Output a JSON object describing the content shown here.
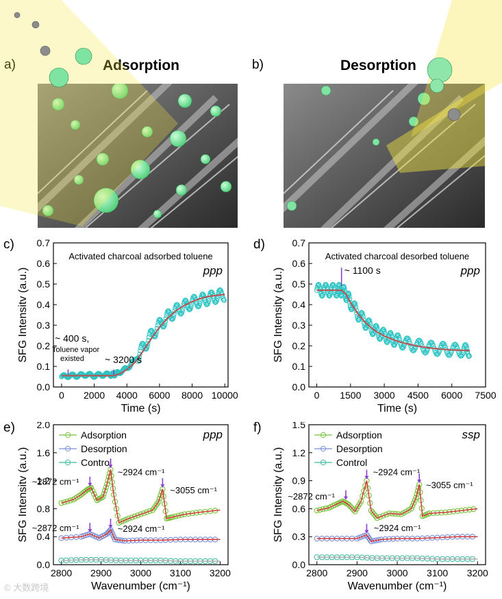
{
  "figure": {
    "panel_a": {
      "label": "a)",
      "title": "Adsorption"
    },
    "panel_b": {
      "label": "b)",
      "title": "Desorption"
    },
    "watermark": "© 大数跨境"
  },
  "colors": {
    "marker": "#2ec4c4",
    "fit": "#b25a5a",
    "green": "#78c23c",
    "blue": "#7a8fd6",
    "teal": "#3fb8a0",
    "highlight": "#f5e640"
  },
  "chart_data": [
    {
      "id": "c",
      "panel_label": "c)",
      "type": "scatter",
      "title": "Activated charcoal adsorbed toluene",
      "pol": "ppp",
      "xlabel": "Time (s)",
      "ylabel": "SFG Intensitv (a.u.)",
      "xlim": [
        -500,
        10200
      ],
      "ylim": [
        0,
        0.7
      ],
      "xticks": [
        0,
        2000,
        4000,
        6000,
        8000,
        10000
      ],
      "yticks": [
        0.0,
        0.1,
        0.2,
        0.3,
        0.4,
        0.5,
        0.6,
        0.7
      ],
      "series": [
        {
          "kind": "points",
          "x": [
            0,
            500,
            1000,
            1500,
            2000,
            2500,
            3000,
            3200,
            3500,
            4000,
            4500,
            5000,
            5500,
            6000,
            6500,
            7000,
            7500,
            8000,
            8500,
            9000,
            9500,
            10000
          ],
          "y": [
            0.05,
            0.055,
            0.055,
            0.06,
            0.055,
            0.06,
            0.06,
            0.06,
            0.07,
            0.09,
            0.13,
            0.19,
            0.25,
            0.3,
            0.34,
            0.37,
            0.39,
            0.41,
            0.42,
            0.43,
            0.44,
            0.45
          ]
        },
        {
          "kind": "fit",
          "x": [
            0,
            3200,
            3600,
            4000,
            4500,
            5000,
            5500,
            6000,
            6500,
            7000,
            7500,
            8000,
            8500,
            9000,
            9500,
            10000
          ],
          "y": [
            0.055,
            0.055,
            0.065,
            0.085,
            0.12,
            0.175,
            0.235,
            0.29,
            0.335,
            0.37,
            0.395,
            0.415,
            0.43,
            0.44,
            0.445,
            0.45
          ]
        }
      ],
      "annotations": [
        {
          "text": "~ 400 s,",
          "x": 400,
          "y": 0.055
        },
        {
          "text": "Toluene vapor",
          "x": 400,
          "y": 0.055
        },
        {
          "text": "existed",
          "x": 400,
          "y": 0.055
        },
        {
          "text": "~ 3200 s",
          "x": 3200,
          "y": 0.06
        }
      ]
    },
    {
      "id": "d",
      "panel_label": "d)",
      "type": "scatter",
      "title": "Activated charcoal desorbed toluene",
      "pol": "ppp",
      "xlabel": "Time (s)",
      "ylabel": "SFG Intensity (a.u.)",
      "xlim": [
        -350,
        7500
      ],
      "ylim": [
        0,
        0.7
      ],
      "xticks": [
        0,
        1500,
        3000,
        4500,
        6000,
        7500
      ],
      "yticks": [
        0.0,
        0.1,
        0.2,
        0.3,
        0.4,
        0.5,
        0.6,
        0.7
      ],
      "series": [
        {
          "kind": "points",
          "x": [
            0,
            300,
            600,
            900,
            1100,
            1300,
            1500,
            1800,
            2100,
            2400,
            2700,
            3000,
            3300,
            3600,
            4000,
            4500,
            5000,
            5500,
            6000,
            6500,
            6800
          ],
          "y": [
            0.47,
            0.47,
            0.47,
            0.47,
            0.47,
            0.45,
            0.41,
            0.36,
            0.32,
            0.29,
            0.265,
            0.25,
            0.235,
            0.225,
            0.21,
            0.2,
            0.19,
            0.185,
            0.18,
            0.178,
            0.177
          ]
        },
        {
          "kind": "fit",
          "x": [
            0,
            1100,
            1300,
            1500,
            1800,
            2100,
            2400,
            2700,
            3000,
            3300,
            3600,
            4000,
            4500,
            5000,
            5500,
            6000,
            6500,
            6800
          ],
          "y": [
            0.47,
            0.47,
            0.45,
            0.41,
            0.36,
            0.32,
            0.29,
            0.265,
            0.248,
            0.234,
            0.222,
            0.21,
            0.198,
            0.19,
            0.184,
            0.18,
            0.178,
            0.177
          ]
        }
      ],
      "annotations": [
        {
          "text": "~ 1100 s",
          "x": 1100,
          "y": 0.5
        }
      ]
    },
    {
      "id": "e",
      "panel_label": "e)",
      "type": "line",
      "pol": "ppp",
      "xlabel": "Wavenumber (cm⁻¹)",
      "ylabel": "SFG Intensitv (a.u.)",
      "xlim": [
        2780,
        3220
      ],
      "ylim": [
        0,
        2.0
      ],
      "xticks": [
        2800,
        2900,
        3000,
        3100,
        3200
      ],
      "yticks": [
        0.0,
        0.4,
        0.8,
        1.2,
        1.6,
        2.0
      ],
      "series": [
        {
          "name": "Adsorption",
          "x": [
            2800,
            2830,
            2850,
            2865,
            2875,
            2890,
            2905,
            2915,
            2924,
            2932,
            2945,
            2970,
            3000,
            3030,
            3045,
            3055,
            3065,
            3080,
            3110,
            3150,
            3200
          ],
          "y": [
            0.88,
            0.93,
            1.0,
            1.07,
            1.1,
            0.92,
            0.97,
            1.15,
            1.36,
            1.0,
            0.6,
            0.66,
            0.72,
            0.78,
            0.9,
            1.08,
            0.66,
            0.68,
            0.72,
            0.75,
            0.78
          ]
        },
        {
          "name": "Desorption",
          "x": [
            2800,
            2850,
            2872,
            2895,
            2915,
            2924,
            2935,
            2960,
            3000,
            3050,
            3100,
            3150,
            3200
          ],
          "y": [
            0.38,
            0.4,
            0.44,
            0.38,
            0.44,
            0.5,
            0.36,
            0.34,
            0.35,
            0.35,
            0.36,
            0.36,
            0.36
          ]
        },
        {
          "name": "Control",
          "x": [
            2800,
            2850,
            2900,
            2950,
            3000,
            3050,
            3100,
            3150,
            3200
          ],
          "y": [
            0.06,
            0.07,
            0.07,
            0.06,
            0.06,
            0.06,
            0.05,
            0.05,
            0.05
          ]
        }
      ],
      "annotations": [
        {
          "text": "~2872 cm⁻¹",
          "x": 2872,
          "y": 1.1
        },
        {
          "text": "~2924 cm⁻¹",
          "x": 2924,
          "y": 1.36
        },
        {
          "text": "~3055 cm⁻¹",
          "x": 3055,
          "y": 1.08
        },
        {
          "text": "~2872 cm⁻¹",
          "x": 2872,
          "y": 0.44
        },
        {
          "text": "~2924 cm⁻¹",
          "x": 2924,
          "y": 0.5
        }
      ]
    },
    {
      "id": "f",
      "panel_label": "f)",
      "type": "line",
      "pol": "ssp",
      "xlabel": "Wavenumber (cm⁻¹)",
      "ylabel": "SFG Intensity (a.u.)",
      "xlim": [
        2780,
        3220
      ],
      "ylim": [
        0,
        1.5
      ],
      "xticks": [
        2800,
        2900,
        3000,
        3100,
        3200
      ],
      "yticks": [
        0.0,
        0.3,
        0.6,
        0.9,
        1.2,
        1.5
      ],
      "series": [
        {
          "name": "Adsorption",
          "x": [
            2800,
            2830,
            2850,
            2865,
            2880,
            2895,
            2910,
            2924,
            2935,
            2950,
            2980,
            3010,
            3035,
            3047,
            3055,
            3063,
            3080,
            3120,
            3160,
            3200
          ],
          "y": [
            0.58,
            0.61,
            0.65,
            0.68,
            0.64,
            0.57,
            0.68,
            0.9,
            0.58,
            0.5,
            0.55,
            0.54,
            0.6,
            0.72,
            0.86,
            0.52,
            0.55,
            0.56,
            0.58,
            0.6
          ]
        },
        {
          "name": "Desorption",
          "x": [
            2800,
            2850,
            2900,
            2924,
            2935,
            2960,
            3000,
            3050,
            3100,
            3150,
            3200
          ],
          "y": [
            0.28,
            0.28,
            0.28,
            0.32,
            0.25,
            0.27,
            0.28,
            0.28,
            0.29,
            0.3,
            0.3
          ]
        },
        {
          "name": "Control",
          "x": [
            2800,
            2850,
            2900,
            2950,
            3000,
            3050,
            3100,
            3150,
            3200
          ],
          "y": [
            0.08,
            0.08,
            0.08,
            0.07,
            0.07,
            0.07,
            0.06,
            0.06,
            0.06
          ]
        }
      ],
      "annotations": [
        {
          "text": "~2872 cm⁻¹",
          "x": 2872,
          "y": 0.68
        },
        {
          "text": "~2924 cm⁻¹",
          "x": 2924,
          "y": 0.9
        },
        {
          "text": "~3055 cm⁻¹",
          "x": 3055,
          "y": 0.86
        },
        {
          "text": "~2924 cm⁻¹",
          "x": 2924,
          "y": 0.32
        }
      ]
    }
  ]
}
